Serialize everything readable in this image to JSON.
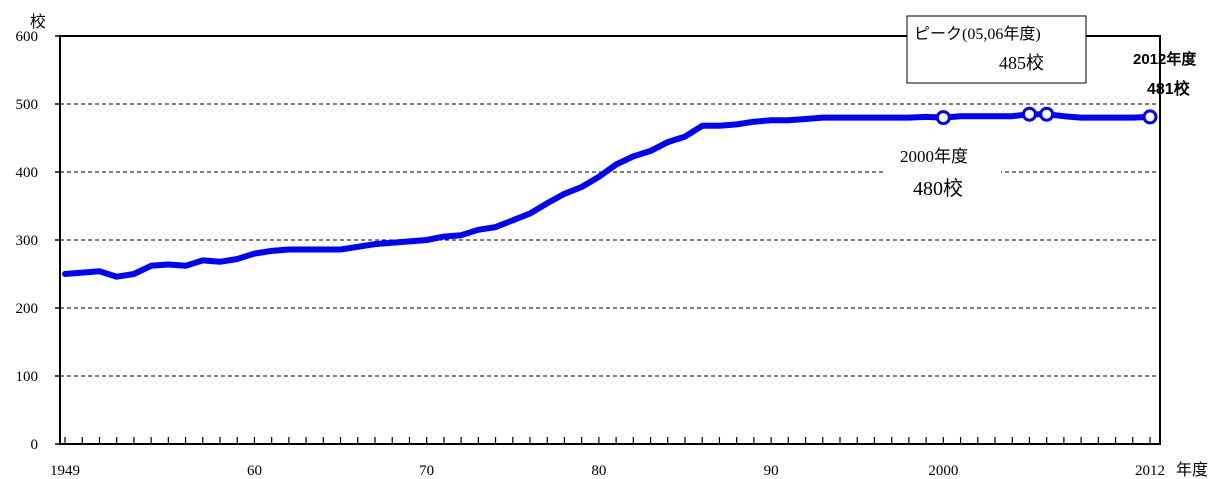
{
  "chart_data": {
    "type": "line",
    "unit_label": "校",
    "x_unit_label": "年度",
    "x_tick_labels": [
      {
        "year": 1949,
        "label": "1949"
      },
      {
        "year": 1960,
        "label": "60"
      },
      {
        "year": 1970,
        "label": "70"
      },
      {
        "year": 1980,
        "label": "80"
      },
      {
        "year": 1990,
        "label": "90"
      },
      {
        "year": 2000,
        "label": "2000"
      },
      {
        "year": 2012,
        "label": "2012"
      }
    ],
    "y_ticks": [
      0,
      100,
      200,
      300,
      400,
      500,
      600
    ],
    "xlim": [
      1949,
      2012
    ],
    "ylim": [
      0,
      600
    ],
    "grid": "horizontal dashed",
    "line_color": "#0000ff",
    "marker_fill": "#ffffff",
    "series": [
      {
        "x": [
          1949,
          1950,
          1951,
          1952,
          1953,
          1954,
          1955,
          1956,
          1957,
          1958,
          1959,
          1960,
          1961,
          1962,
          1963,
          1964,
          1965,
          1966,
          1967,
          1968,
          1969,
          1970,
          1971,
          1972,
          1973,
          1974,
          1975,
          1976,
          1977,
          1978,
          1979,
          1980,
          1981,
          1982,
          1983,
          1984,
          1985,
          1986,
          1987,
          1988,
          1989,
          1990,
          1991,
          1992,
          1993,
          1994,
          1995,
          1996,
          1997,
          1998,
          1999,
          2000,
          2001,
          2002,
          2003,
          2004,
          2005,
          2006,
          2007,
          2008,
          2009,
          2010,
          2011,
          2012
        ],
        "values": [
          250,
          252,
          254,
          246,
          250,
          262,
          264,
          262,
          270,
          268,
          272,
          280,
          284,
          286,
          286,
          286,
          286,
          290,
          294,
          296,
          298,
          300,
          305,
          307,
          315,
          319,
          329,
          339,
          354,
          368,
          378,
          393,
          411,
          423,
          431,
          444,
          452,
          468,
          468,
          470,
          474,
          476,
          476,
          478,
          480,
          480,
          480,
          480,
          480,
          480,
          481,
          480,
          482,
          482,
          482,
          482,
          485,
          485,
          482,
          480,
          480,
          480,
          480,
          481
        ]
      }
    ],
    "markers": [
      {
        "year": 2000,
        "value": 480
      },
      {
        "year": 2005,
        "value": 485
      },
      {
        "year": 2006,
        "value": 485
      },
      {
        "year": 2012,
        "value": 481
      }
    ],
    "annotations": {
      "peak_line1": "ピーク(05,06年度)",
      "peak_line2": "485校",
      "y2000_line1": "2000年度",
      "y2000_line2": "480校",
      "y2012_line1": "2012年度",
      "y2012_line2": "481校"
    }
  }
}
